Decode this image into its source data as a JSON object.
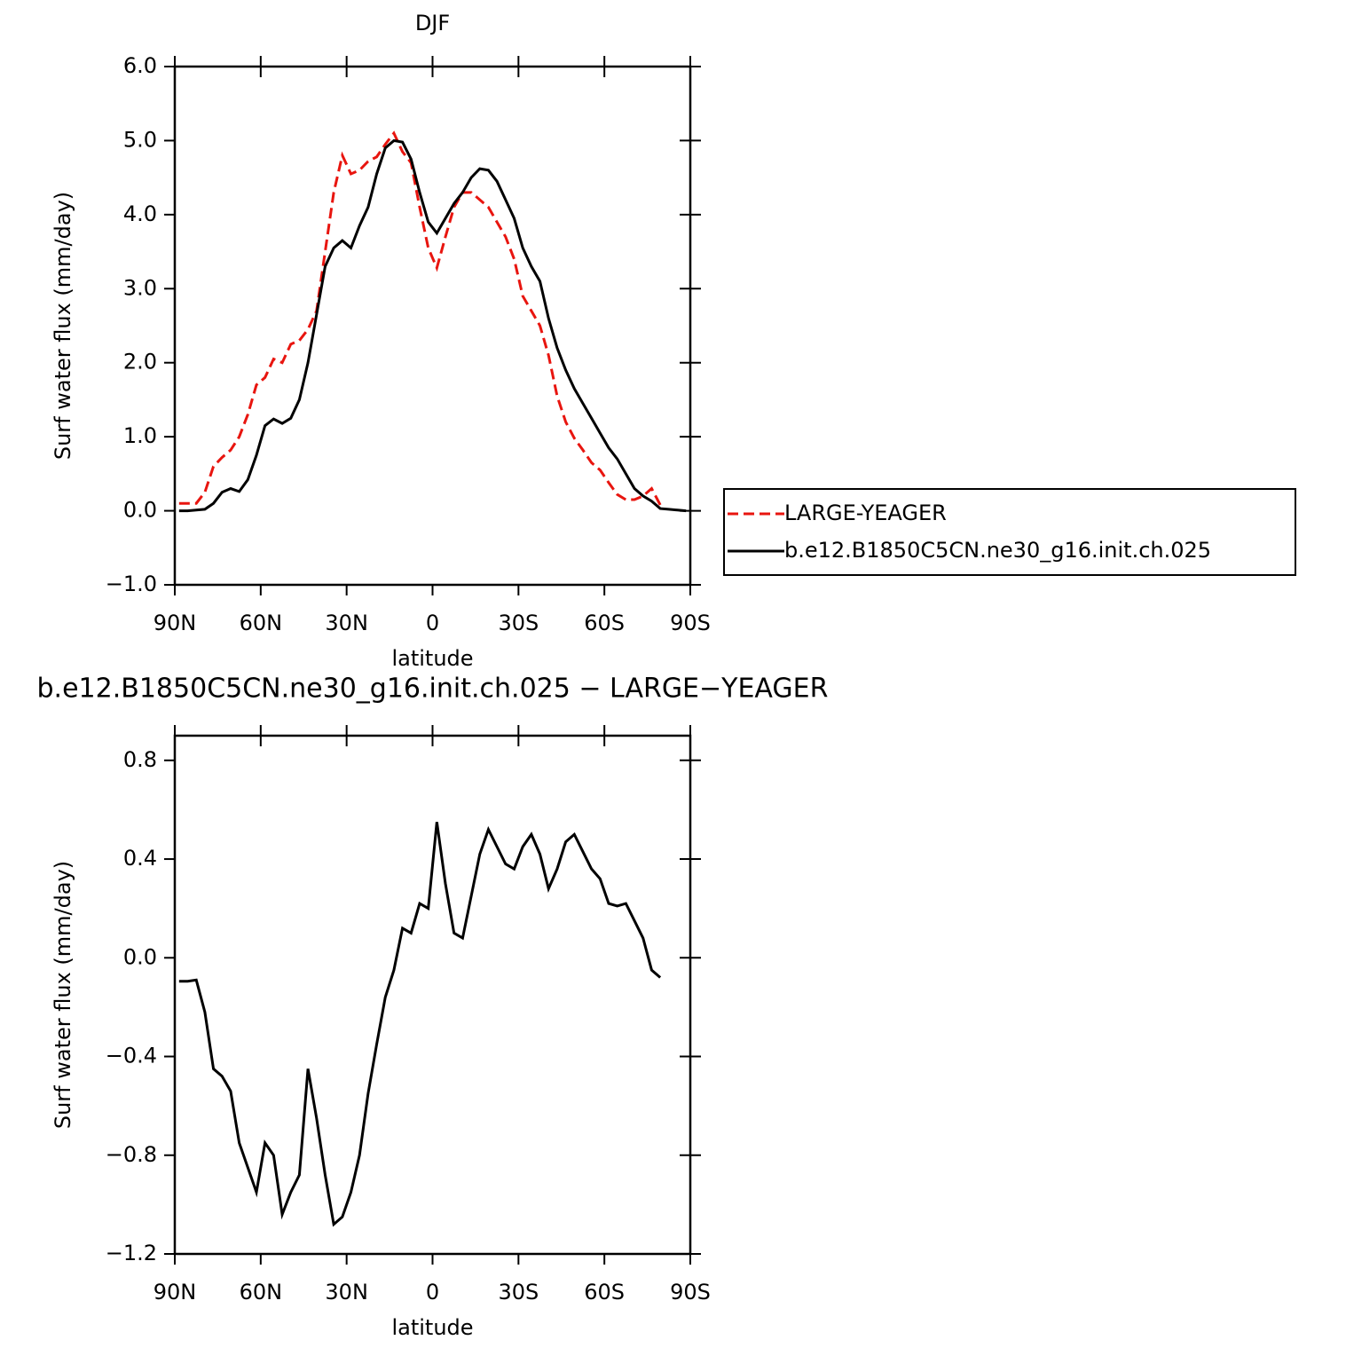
{
  "chart_data": [
    {
      "type": "line",
      "title": "DJF",
      "ylabel": "Surf water flux (mm/day)",
      "xlabel": "latitude",
      "x": [
        88.5,
        85.5,
        82.5,
        79.5,
        76.5,
        73.5,
        70.5,
        67.5,
        64.5,
        61.5,
        58.5,
        55.5,
        52.5,
        49.5,
        46.5,
        43.5,
        40.5,
        37.5,
        34.5,
        31.5,
        28.5,
        25.5,
        22.5,
        19.5,
        16.5,
        13.5,
        10.5,
        7.5,
        4.5,
        1.5,
        -1.5,
        -4.5,
        -7.5,
        -10.5,
        -13.5,
        -16.5,
        -19.5,
        -22.5,
        -25.5,
        -28.5,
        -31.5,
        -34.5,
        -37.5,
        -40.5,
        -43.5,
        -46.5,
        -49.5,
        -52.5,
        -55.5,
        -58.5,
        -61.5,
        -64.5,
        -67.5,
        -70.5,
        -73.5,
        -76.5,
        -79.5,
        -82.5,
        -85.5,
        -88.5
      ],
      "series": [
        {
          "name": "LARGE-YEAGER",
          "color": "#e8150f",
          "line_style": "dashed",
          "values": [
            0.1,
            0.1,
            0.1,
            0.25,
            0.6,
            0.72,
            0.82,
            1.0,
            1.3,
            1.7,
            1.8,
            2.05,
            2.0,
            2.25,
            2.3,
            2.45,
            2.7,
            3.5,
            4.3,
            4.8,
            4.55,
            4.6,
            4.72,
            4.78,
            4.95,
            5.1,
            4.85,
            4.7,
            4.1,
            3.55,
            3.28,
            3.7,
            4.1,
            4.3,
            4.3,
            4.2,
            4.1,
            3.9,
            3.7,
            3.4,
            2.9,
            2.7,
            2.5,
            2.1,
            1.55,
            1.2,
            0.98,
            0.82,
            0.65,
            0.55,
            0.38,
            0.22,
            0.15,
            0.15,
            0.2,
            0.3,
            0.08,
            null,
            null,
            null
          ]
        },
        {
          "name": "b.e12.B1850C5CN.ne30_g16.init.ch.025",
          "color": "#000000",
          "line_style": "solid",
          "values": [
            0.0,
            0.0,
            0.01,
            0.02,
            0.1,
            0.25,
            0.3,
            0.26,
            0.42,
            0.75,
            1.15,
            1.24,
            1.18,
            1.25,
            1.5,
            2.0,
            2.65,
            3.3,
            3.55,
            3.65,
            3.55,
            3.85,
            4.1,
            4.55,
            4.9,
            5.0,
            4.98,
            4.75,
            4.3,
            3.9,
            3.75,
            3.95,
            4.15,
            4.3,
            4.5,
            4.62,
            4.6,
            4.45,
            4.2,
            3.95,
            3.55,
            3.3,
            3.1,
            2.6,
            2.2,
            1.9,
            1.65,
            1.45,
            1.25,
            1.05,
            0.85,
            0.7,
            0.5,
            0.3,
            0.2,
            0.13,
            0.03,
            0.02,
            0.01,
            0.0
          ]
        }
      ],
      "xlim": [
        90,
        -90
      ],
      "xticks": [
        {
          "value": 90,
          "label": "90N"
        },
        {
          "value": 60,
          "label": "60N"
        },
        {
          "value": 30,
          "label": "30N"
        },
        0,
        {
          "value": -30,
          "label": "30S"
        },
        {
          "value": -60,
          "label": "60S"
        },
        {
          "value": -90,
          "label": "90S"
        }
      ],
      "ylim": [
        -1,
        6
      ],
      "yticks": [
        {
          "value": -1,
          "label": "−1.0"
        },
        {
          "value": 0,
          "label": "0.0"
        },
        {
          "value": 1,
          "label": "1.0"
        },
        {
          "value": 2,
          "label": "2.0"
        },
        {
          "value": 3,
          "label": "3.0"
        },
        {
          "value": 4,
          "label": "4.0"
        },
        {
          "value": 5,
          "label": "5.0"
        },
        {
          "value": 6,
          "label": "6.0"
        }
      ],
      "legend": "right"
    },
    {
      "type": "line",
      "title": "b.e12.B1850C5CN.ne30_g16.init.ch.025 − LARGE−YEAGER",
      "ylabel": "Surf water flux (mm/day)",
      "xlabel": "latitude",
      "x": [
        88.5,
        85.5,
        82.5,
        79.5,
        76.5,
        73.5,
        70.5,
        67.5,
        64.5,
        61.5,
        58.5,
        55.5,
        52.5,
        49.5,
        46.5,
        43.5,
        40.5,
        37.5,
        34.5,
        31.5,
        28.5,
        25.5,
        22.5,
        19.5,
        16.5,
        13.5,
        10.5,
        7.5,
        4.5,
        1.5,
        -1.5,
        -4.5,
        -7.5,
        -10.5,
        -13.5,
        -16.5,
        -19.5,
        -22.5,
        -25.5,
        -28.5,
        -31.5,
        -34.5,
        -37.5,
        -40.5,
        -43.5,
        -46.5,
        -49.5,
        -52.5,
        -55.5,
        -58.5,
        -61.5,
        -64.5,
        -67.5,
        -70.5,
        -73.5,
        -76.5,
        -79.5,
        -82.5,
        -85.5,
        -88.5
      ],
      "series": [
        {
          "color": "#000000",
          "line_style": "solid",
          "values": [
            -0.095,
            -0.095,
            -0.09,
            -0.22,
            -0.45,
            -0.48,
            -0.54,
            -0.75,
            -0.85,
            -0.95,
            -0.75,
            -0.8,
            -1.04,
            -0.95,
            -0.88,
            -0.45,
            -0.65,
            -0.88,
            -1.08,
            -1.05,
            -0.95,
            -0.8,
            -0.55,
            -0.35,
            -0.16,
            -0.05,
            0.12,
            0.1,
            0.22,
            0.2,
            0.55,
            0.3,
            0.1,
            0.08,
            0.25,
            0.42,
            0.52,
            0.45,
            0.38,
            0.36,
            0.45,
            0.5,
            0.42,
            0.28,
            0.36,
            0.47,
            0.5,
            0.43,
            0.36,
            0.32,
            0.22,
            0.21,
            0.22,
            0.15,
            0.08,
            -0.05,
            -0.08,
            null,
            null,
            null
          ]
        }
      ],
      "xlim": [
        90,
        -90
      ],
      "xticks": [
        {
          "value": 90,
          "label": "90N"
        },
        {
          "value": 60,
          "label": "60N"
        },
        {
          "value": 30,
          "label": "30N"
        },
        0,
        {
          "value": -30,
          "label": "30S"
        },
        {
          "value": -60,
          "label": "60S"
        },
        {
          "value": -90,
          "label": "90S"
        }
      ],
      "ylim": [
        -1.2,
        0.9
      ],
      "yticks": [
        {
          "value": -1.2,
          "label": "−1.2"
        },
        {
          "value": -0.8,
          "label": "−0.8"
        },
        {
          "value": -0.4,
          "label": "−0.4"
        },
        {
          "value": 0,
          "label": "0.0"
        },
        {
          "value": 0.4,
          "label": "0.4"
        },
        {
          "value": 0.8,
          "label": "0.8"
        }
      ]
    }
  ]
}
